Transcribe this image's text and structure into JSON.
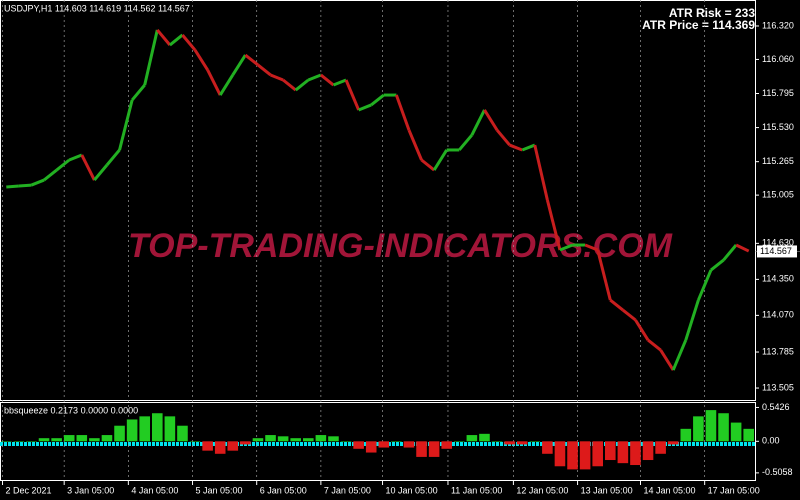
{
  "chart_data": [
    {
      "type": "price-line",
      "title": "USDJPY,H1  114.603 114.619 114.562 114.567",
      "annotations": [
        "ATR Risk = 233",
        "ATR Price = 114.369"
      ],
      "watermark": "TOP-TRADING-INDICATORS.COM",
      "last_price": 114.567,
      "up_color": "#22b022",
      "down_color": "#c81e1e",
      "values": [
        115.068,
        115.076,
        115.083,
        115.122,
        115.2,
        115.278,
        115.317,
        115.122,
        115.239,
        115.356,
        115.744,
        115.861,
        116.289,
        116.172,
        116.25,
        116.133,
        115.978,
        115.783,
        115.939,
        116.094,
        116.017,
        115.939,
        115.9,
        115.822,
        115.9,
        115.939,
        115.861,
        115.9,
        115.667,
        115.706,
        115.783,
        115.783,
        115.511,
        115.278,
        115.2,
        115.356,
        115.356,
        115.472,
        115.667,
        115.511,
        115.394,
        115.356,
        115.394,
        114.967,
        114.578,
        114.617,
        114.617,
        114.578,
        114.189,
        114.111,
        114.034,
        113.878,
        113.8,
        113.645,
        113.878,
        114.189,
        114.422,
        114.5,
        114.617,
        114.57
      ],
      "xlim": [
        -0.5,
        59.5
      ],
      "xticks": [
        {
          "value": -0.3,
          "label": "2 Dec 2021"
        },
        {
          "value": 4.6,
          "label": "3 Jan 05:00"
        },
        {
          "value": 9.7,
          "label": "4 Jan 05:00"
        },
        {
          "value": 14.8,
          "label": "5 Jan 05:00"
        },
        {
          "value": 19.9,
          "label": "6 Jan 05:00"
        },
        {
          "value": 25.0,
          "label": "7 Jan 05:00"
        },
        {
          "value": 29.9,
          "label": "10 Jan 05:00"
        },
        {
          "value": 35.1,
          "label": "11 Jan 05:00"
        },
        {
          "value": 40.3,
          "label": "12 Jan 05:00"
        },
        {
          "value": 45.4,
          "label": "13 Jan 05:00"
        },
        {
          "value": 50.4,
          "label": "14 Jan 05:00"
        },
        {
          "value": 55.5,
          "label": "17 Jan 05:00"
        }
      ],
      "ylim": [
        113.412,
        116.522
      ],
      "yticks": [
        {
          "value": 116.32,
          "label": "116.320"
        },
        {
          "value": 116.06,
          "label": "116.060"
        },
        115.795,
        {
          "value": 115.53,
          "label": "115.530"
        },
        115.265,
        115.005,
        {
          "value": 114.63,
          "label": "114.630"
        },
        {
          "value": 114.35,
          "label": "114.350"
        },
        {
          "value": 114.07,
          "label": "114.070"
        },
        113.785,
        113.505
      ],
      "grid": true
    },
    {
      "type": "histogram",
      "title": "bbsqueeze 0.2173 0.0000 0.0000",
      "positive_color": "#22cc22",
      "negative_color": "#dd1a1a",
      "values": [
        0,
        0,
        0,
        0.05,
        0.05,
        0.1,
        0.1,
        0.05,
        0.1,
        0.25,
        0.35,
        0.4,
        0.45,
        0.4,
        0.25,
        0,
        -0.15,
        -0.2,
        -0.15,
        -0.05,
        0.05,
        0.1,
        0.08,
        0.05,
        0.05,
        0.1,
        0.08,
        0,
        -0.12,
        -0.18,
        -0.1,
        0,
        -0.1,
        -0.25,
        -0.25,
        -0.12,
        0,
        0.1,
        0.12,
        0,
        -0.05,
        -0.05,
        0,
        -0.2,
        -0.4,
        -0.45,
        -0.45,
        -0.4,
        -0.3,
        -0.35,
        -0.38,
        -0.3,
        -0.2,
        -0.05,
        0.2,
        0.4,
        0.5,
        0.45,
        0.3,
        0.2
      ],
      "ylim": [
        -0.62,
        0.63
      ],
      "yticks": [
        0.5426,
        {
          "value": 0,
          "label": "0.00"
        },
        -0.5058
      ]
    }
  ]
}
